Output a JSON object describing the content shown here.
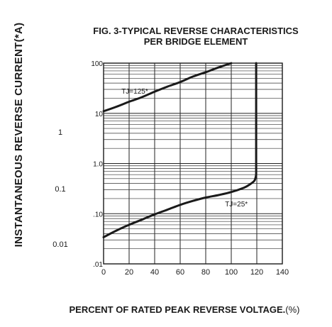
{
  "chart_data": {
    "type": "line",
    "title_line1": "FIG. 3-TYPICAL REVERSE CHARACTERISTICS",
    "title_line2": "PER BRIDGE ELEMENT",
    "ylabel": "INSTANTANEOUS REVERSE CURRENT(*A)",
    "xlabel": "PERCENT OF RATED PEAK REVERSE VOLTAGE.",
    "xlabel_suffix": "(%)",
    "x_scale": "linear",
    "y_scale": "log",
    "xlim": [
      0,
      140
    ],
    "ylim": [
      0.01,
      100
    ],
    "x_ticks": [
      "0",
      "20",
      "40",
      "60",
      "80",
      "100",
      "120",
      "140"
    ],
    "y_ticks": [
      "100",
      "10",
      "1.0",
      ".10",
      ".01"
    ],
    "outer_labels": [
      "1",
      "0.1",
      "0.01"
    ],
    "grid": true,
    "series": [
      {
        "name": "TJ=125*",
        "x": [
          0,
          10,
          20,
          30,
          40,
          50,
          60,
          70,
          80,
          90,
          100
        ],
        "y": [
          11,
          13.5,
          17,
          21,
          27,
          34,
          42,
          54,
          66,
          82,
          100
        ]
      },
      {
        "name": "TJ=25*",
        "x": [
          0,
          10,
          20,
          30,
          40,
          50,
          60,
          70,
          80,
          90,
          100,
          110,
          115,
          118,
          119,
          119.5,
          119.5,
          119.5
        ],
        "y": [
          0.034,
          0.046,
          0.06,
          0.076,
          0.097,
          0.12,
          0.15,
          0.18,
          0.21,
          0.235,
          0.27,
          0.33,
          0.39,
          0.45,
          0.52,
          0.6,
          10,
          100
        ]
      }
    ]
  }
}
